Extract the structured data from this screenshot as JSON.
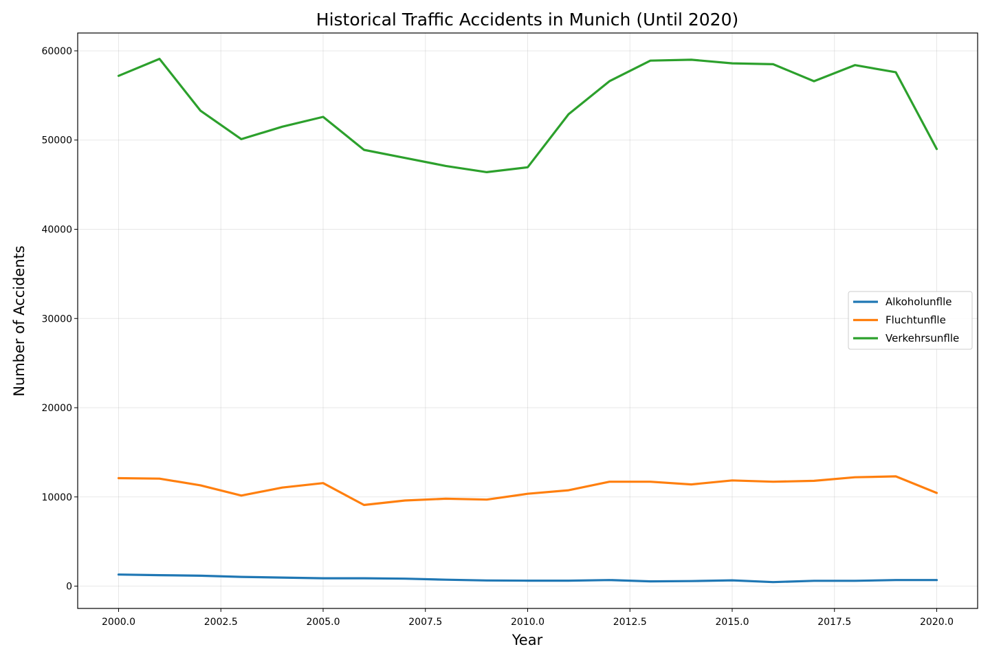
{
  "chart_data": {
    "type": "line",
    "title": "Historical Traffic Accidents in Munich (Until 2020)",
    "xlabel": "Year",
    "ylabel": "Number of Accidents",
    "xlim": [
      1999,
      2021
    ],
    "ylim": [
      -2500,
      62000
    ],
    "xticks": [
      2000.0,
      2002.5,
      2005.0,
      2007.5,
      2010.0,
      2012.5,
      2015.0,
      2017.5,
      2020.0
    ],
    "xtick_labels": [
      "2000.0",
      "2002.5",
      "2005.0",
      "2007.5",
      "2010.0",
      "2012.5",
      "2015.0",
      "2017.5",
      "2020.0"
    ],
    "yticks": [
      0,
      10000,
      20000,
      30000,
      40000,
      50000,
      60000
    ],
    "ytick_labels": [
      "0",
      "10000",
      "20000",
      "30000",
      "40000",
      "50000",
      "60000"
    ],
    "grid": true,
    "legend_position": "center-right",
    "x": [
      2000,
      2001,
      2002,
      2003,
      2004,
      2005,
      2006,
      2007,
      2008,
      2009,
      2010,
      2011,
      2012,
      2013,
      2014,
      2015,
      2016,
      2017,
      2018,
      2019,
      2020
    ],
    "series": [
      {
        "name": "Alkoholunflle",
        "color": "#1f77b4",
        "values": [
          1300,
          1230,
          1170,
          1040,
          960,
          880,
          880,
          840,
          720,
          640,
          610,
          610,
          680,
          540,
          570,
          650,
          450,
          600,
          600,
          680,
          680
        ]
      },
      {
        "name": "Fluchtunflle",
        "color": "#ff7f0e",
        "values": [
          12100,
          12050,
          11300,
          10150,
          11050,
          11550,
          9100,
          9600,
          9800,
          9700,
          10350,
          10750,
          11700,
          11700,
          11400,
          11850,
          11700,
          11800,
          12200,
          12300,
          10450
        ]
      },
      {
        "name": "Verkehrsunflle",
        "color": "#2ca02c",
        "values": [
          57200,
          59100,
          53300,
          50100,
          51500,
          52600,
          48900,
          48000,
          47100,
          46400,
          46950,
          52900,
          56600,
          58900,
          59000,
          58600,
          58500,
          56600,
          58400,
          57600,
          49000
        ]
      }
    ]
  }
}
